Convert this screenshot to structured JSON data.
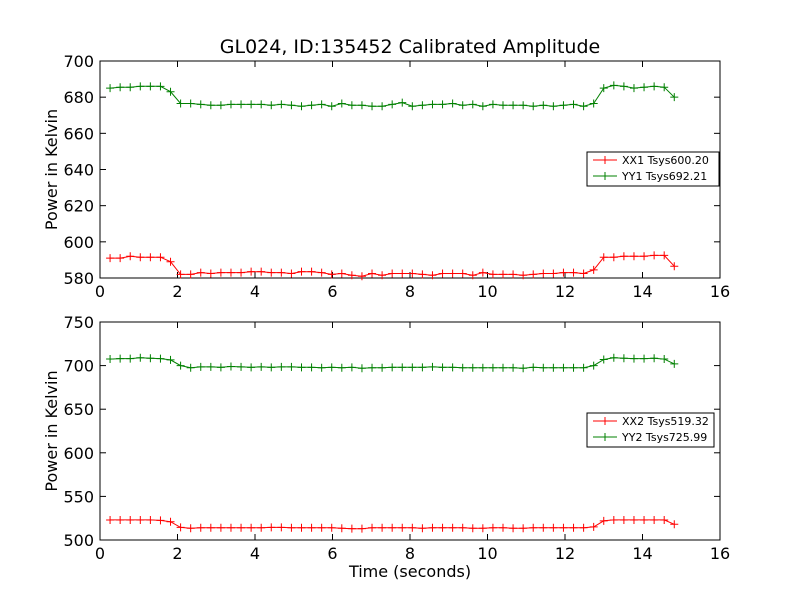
{
  "chart_data": [
    {
      "type": "line",
      "title": "GL024, ID:135452 Calibrated Amplitude",
      "xlabel": "",
      "ylabel": "Power in Kelvin",
      "xlim": [
        0,
        16
      ],
      "ylim": [
        580,
        700
      ],
      "xticks": [
        0,
        2,
        4,
        6,
        8,
        10,
        12,
        14,
        16
      ],
      "yticks": [
        580,
        600,
        620,
        640,
        660,
        680,
        700
      ],
      "legend_position": "center-right",
      "x": [
        0.26,
        0.52,
        0.78,
        1.04,
        1.3,
        1.56,
        1.82,
        2.08,
        2.34,
        2.6,
        2.86,
        3.12,
        3.38,
        3.64,
        3.9,
        4.16,
        4.42,
        4.68,
        4.94,
        5.2,
        5.46,
        5.72,
        5.98,
        6.24,
        6.5,
        6.76,
        7.02,
        7.28,
        7.54,
        7.8,
        8.06,
        8.32,
        8.58,
        8.84,
        9.1,
        9.36,
        9.62,
        9.88,
        10.14,
        10.4,
        10.66,
        10.92,
        11.18,
        11.44,
        11.7,
        11.96,
        12.22,
        12.48,
        12.74,
        13.0,
        13.26,
        13.52,
        13.78,
        14.04,
        14.3,
        14.56,
        14.82
      ],
      "series": [
        {
          "name": "XX1 Tsys600.20",
          "color": "#ff0000",
          "values": [
            591,
            591,
            592,
            591.5,
            591.5,
            591.5,
            589,
            582,
            582,
            583,
            582.5,
            583,
            583,
            583,
            583.5,
            583.5,
            583,
            583,
            582.5,
            583.5,
            583.5,
            583,
            582,
            582.5,
            581.5,
            581,
            582.5,
            581.5,
            582.5,
            582.5,
            582.5,
            582,
            581.5,
            582.5,
            582.5,
            582.5,
            581.5,
            583,
            582,
            582,
            582,
            581.5,
            582,
            582.5,
            582.5,
            583,
            583,
            582.5,
            584.5,
            591.5,
            591.5,
            592,
            592,
            592,
            592.5,
            592.5,
            586.5
          ]
        },
        {
          "name": "YY1 Tsys692.21",
          "color": "#008000",
          "values": [
            685,
            685.5,
            685.5,
            686,
            686,
            686,
            683,
            676.5,
            676.5,
            676,
            675.5,
            675.5,
            676,
            676,
            676,
            676,
            675.5,
            676,
            675.5,
            675,
            675.5,
            676,
            675,
            676.5,
            675.5,
            675.5,
            675,
            675,
            676,
            677,
            675,
            675.5,
            676,
            676,
            676.5,
            675.5,
            676,
            675,
            676,
            675.5,
            675.5,
            675.5,
            675,
            675.5,
            675,
            675.5,
            676,
            675,
            676.5,
            685,
            686.5,
            686,
            685,
            685.5,
            686,
            685.5,
            680
          ]
        }
      ]
    },
    {
      "type": "line",
      "title": "",
      "xlabel": "Time (seconds)",
      "ylabel": "Power in Kelvin",
      "xlim": [
        0,
        16
      ],
      "ylim": [
        500,
        750
      ],
      "xticks": [
        0,
        2,
        4,
        6,
        8,
        10,
        12,
        14,
        16
      ],
      "yticks": [
        500,
        550,
        600,
        650,
        700,
        750
      ],
      "legend_position": "center-right",
      "x": [
        0.26,
        0.52,
        0.78,
        1.04,
        1.3,
        1.56,
        1.82,
        2.08,
        2.34,
        2.6,
        2.86,
        3.12,
        3.38,
        3.64,
        3.9,
        4.16,
        4.42,
        4.68,
        4.94,
        5.2,
        5.46,
        5.72,
        5.98,
        6.24,
        6.5,
        6.76,
        7.02,
        7.28,
        7.54,
        7.8,
        8.06,
        8.32,
        8.58,
        8.84,
        9.1,
        9.36,
        9.62,
        9.88,
        10.14,
        10.4,
        10.66,
        10.92,
        11.18,
        11.44,
        11.7,
        11.96,
        12.22,
        12.48,
        12.74,
        13.0,
        13.26,
        13.52,
        13.78,
        14.04,
        14.3,
        14.56,
        14.82
      ],
      "series": [
        {
          "name": "XX2 Tsys519.32",
          "color": "#ff0000",
          "values": [
            523,
            523,
            523,
            523,
            523,
            522.5,
            521,
            514.5,
            513.5,
            514,
            514,
            514,
            514,
            514,
            514,
            514,
            514.5,
            514.5,
            514,
            514,
            514,
            514,
            514,
            513.5,
            513,
            513,
            514,
            514,
            514,
            514,
            514,
            513.5,
            514,
            514,
            514,
            514,
            513.5,
            513.5,
            514,
            514,
            513.5,
            513.5,
            514,
            514,
            514,
            514,
            514,
            514,
            515,
            522,
            523,
            523,
            523,
            523,
            523,
            523,
            518
          ]
        },
        {
          "name": "YY2 Tsys725.99",
          "color": "#008000",
          "values": [
            707.5,
            708,
            708,
            709,
            708.5,
            708,
            706.5,
            700,
            697.5,
            698.5,
            698.5,
            698,
            699,
            698.5,
            698,
            698.5,
            698,
            698.5,
            698.5,
            698,
            698,
            697.5,
            698,
            697.5,
            698,
            697,
            697.5,
            697.5,
            698,
            698,
            698,
            698,
            698.5,
            698,
            698,
            697.5,
            697.5,
            697.5,
            697.5,
            697.5,
            697.5,
            697,
            698,
            697.5,
            697.5,
            697.5,
            697.5,
            697.5,
            700,
            707,
            709,
            708.5,
            708,
            708,
            708.5,
            707.5,
            702
          ]
        }
      ]
    }
  ]
}
